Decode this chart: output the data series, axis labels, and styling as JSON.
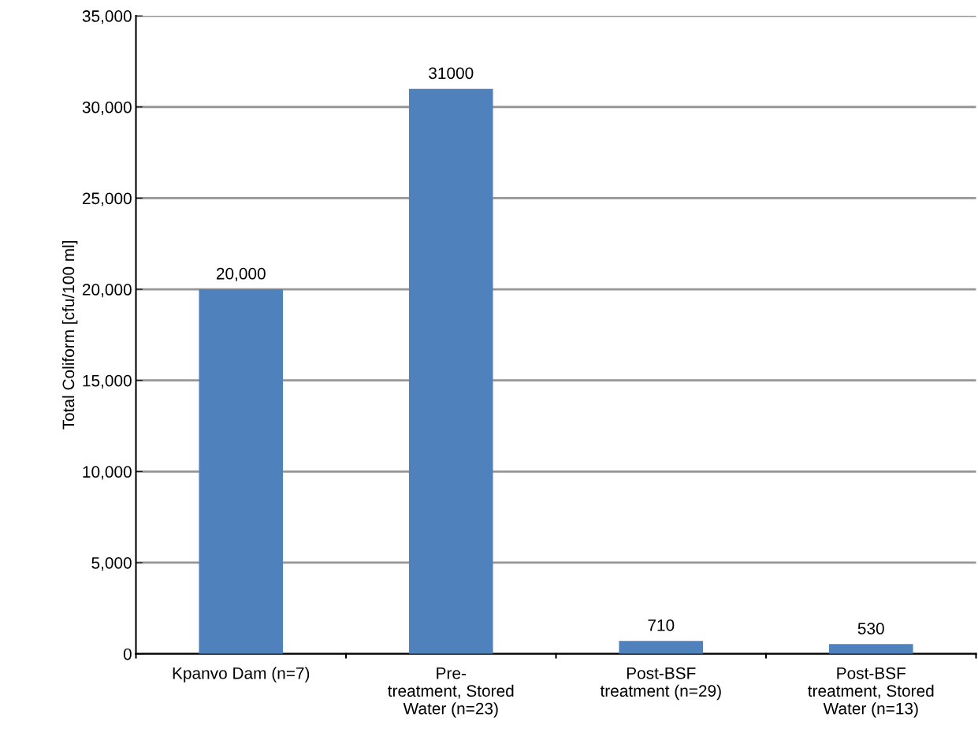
{
  "chart_data": {
    "type": "bar",
    "ylabel": "Total Coliform [cfu/100 ml]",
    "categories": [
      "Kpanvo Dam (n=7)",
      "Pre-\ntreatment, Stored\nWater (n=23)",
      "Post-BSF\ntreatment (n=29)",
      "Post-BSF\ntreatment, Stored\nWater (n=13)"
    ],
    "values": [
      20000,
      31000,
      710,
      530
    ],
    "value_labels": [
      "20,000",
      "31000",
      "710",
      "530"
    ],
    "color": "#4f81bd",
    "ylim": [
      0,
      35000
    ],
    "yticks": [
      {
        "value": 0,
        "label": "0"
      },
      {
        "value": 5000,
        "label": "5,000"
      },
      {
        "value": 10000,
        "label": "10,000"
      },
      {
        "value": 15000,
        "label": "15,000"
      },
      {
        "value": 20000,
        "label": "20,000"
      },
      {
        "value": 25000,
        "label": "25,000"
      },
      {
        "value": 30000,
        "label": "30,000"
      },
      {
        "value": 35000,
        "label": "35,000"
      }
    ],
    "grid": "y",
    "legend": false
  }
}
